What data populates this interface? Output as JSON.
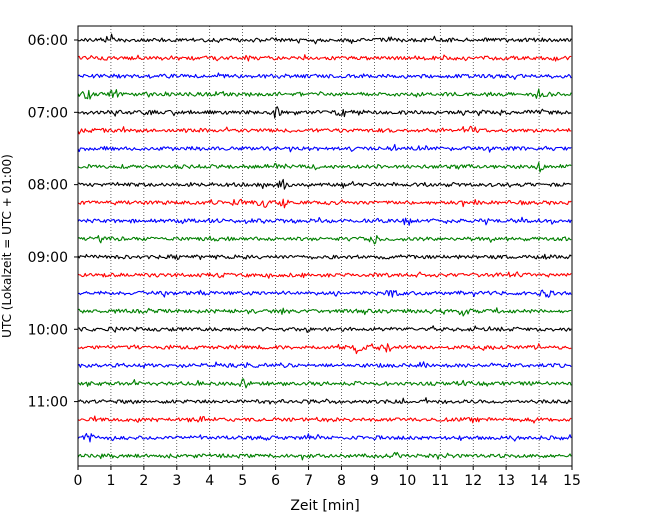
{
  "chart_data": {
    "type": "line",
    "title": "",
    "xlabel": "Zeit  [min]",
    "ylabel": "UTC (Lokalzeit = UTC + 01:00)",
    "xlim": [
      0,
      15
    ],
    "x_ticks": [
      "0",
      "1",
      "2",
      "3",
      "4",
      "5",
      "6",
      "7",
      "8",
      "9",
      "10",
      "11",
      "12",
      "13",
      "14",
      "15"
    ],
    "y_ticks": [
      "06:00",
      "07:00",
      "08:00",
      "09:00",
      "10:00",
      "11:00"
    ],
    "grid": "vertical dotted",
    "trace_interval_minutes": 15,
    "color_cycle": [
      "#000000",
      "#ff0000",
      "#0000ff",
      "#008000"
    ],
    "traces": [
      {
        "start": "06:00",
        "color": "#000000",
        "events": [
          1.0
        ]
      },
      {
        "start": "06:15",
        "color": "#ff0000",
        "events": []
      },
      {
        "start": "06:30",
        "color": "#0000ff",
        "events": []
      },
      {
        "start": "06:45",
        "color": "#008000",
        "events": [
          0.3,
          1.1,
          14.0
        ]
      },
      {
        "start": "07:00",
        "color": "#000000",
        "events": [
          2.0,
          6.0,
          8.0
        ]
      },
      {
        "start": "07:15",
        "color": "#ff0000",
        "events": [
          12.0
        ]
      },
      {
        "start": "07:30",
        "color": "#0000ff",
        "events": []
      },
      {
        "start": "07:45",
        "color": "#008000",
        "events": [
          14.0
        ]
      },
      {
        "start": "08:00",
        "color": "#000000",
        "events": [
          6.2
        ]
      },
      {
        "start": "08:15",
        "color": "#ff0000",
        "events": [
          4.8,
          5.6,
          6.2
        ]
      },
      {
        "start": "08:30",
        "color": "#0000ff",
        "events": [
          10.0
        ]
      },
      {
        "start": "08:45",
        "color": "#008000",
        "events": [
          9.0
        ]
      },
      {
        "start": "09:00",
        "color": "#000000",
        "events": []
      },
      {
        "start": "09:15",
        "color": "#ff0000",
        "events": []
      },
      {
        "start": "09:30",
        "color": "#0000ff",
        "events": [
          9.5,
          14.2
        ]
      },
      {
        "start": "09:45",
        "color": "#008000",
        "events": [
          11.7
        ]
      },
      {
        "start": "10:00",
        "color": "#000000",
        "events": []
      },
      {
        "start": "10:15",
        "color": "#ff0000",
        "events": [
          8.5,
          9.3
        ]
      },
      {
        "start": "10:30",
        "color": "#0000ff",
        "events": []
      },
      {
        "start": "10:45",
        "color": "#008000",
        "events": [
          5.0
        ]
      },
      {
        "start": "11:00",
        "color": "#000000",
        "events": []
      },
      {
        "start": "11:15",
        "color": "#ff0000",
        "events": [
          3.8
        ]
      },
      {
        "start": "11:30",
        "color": "#0000ff",
        "events": [
          0.3
        ]
      },
      {
        "start": "11:45",
        "color": "#008000",
        "events": []
      }
    ]
  }
}
